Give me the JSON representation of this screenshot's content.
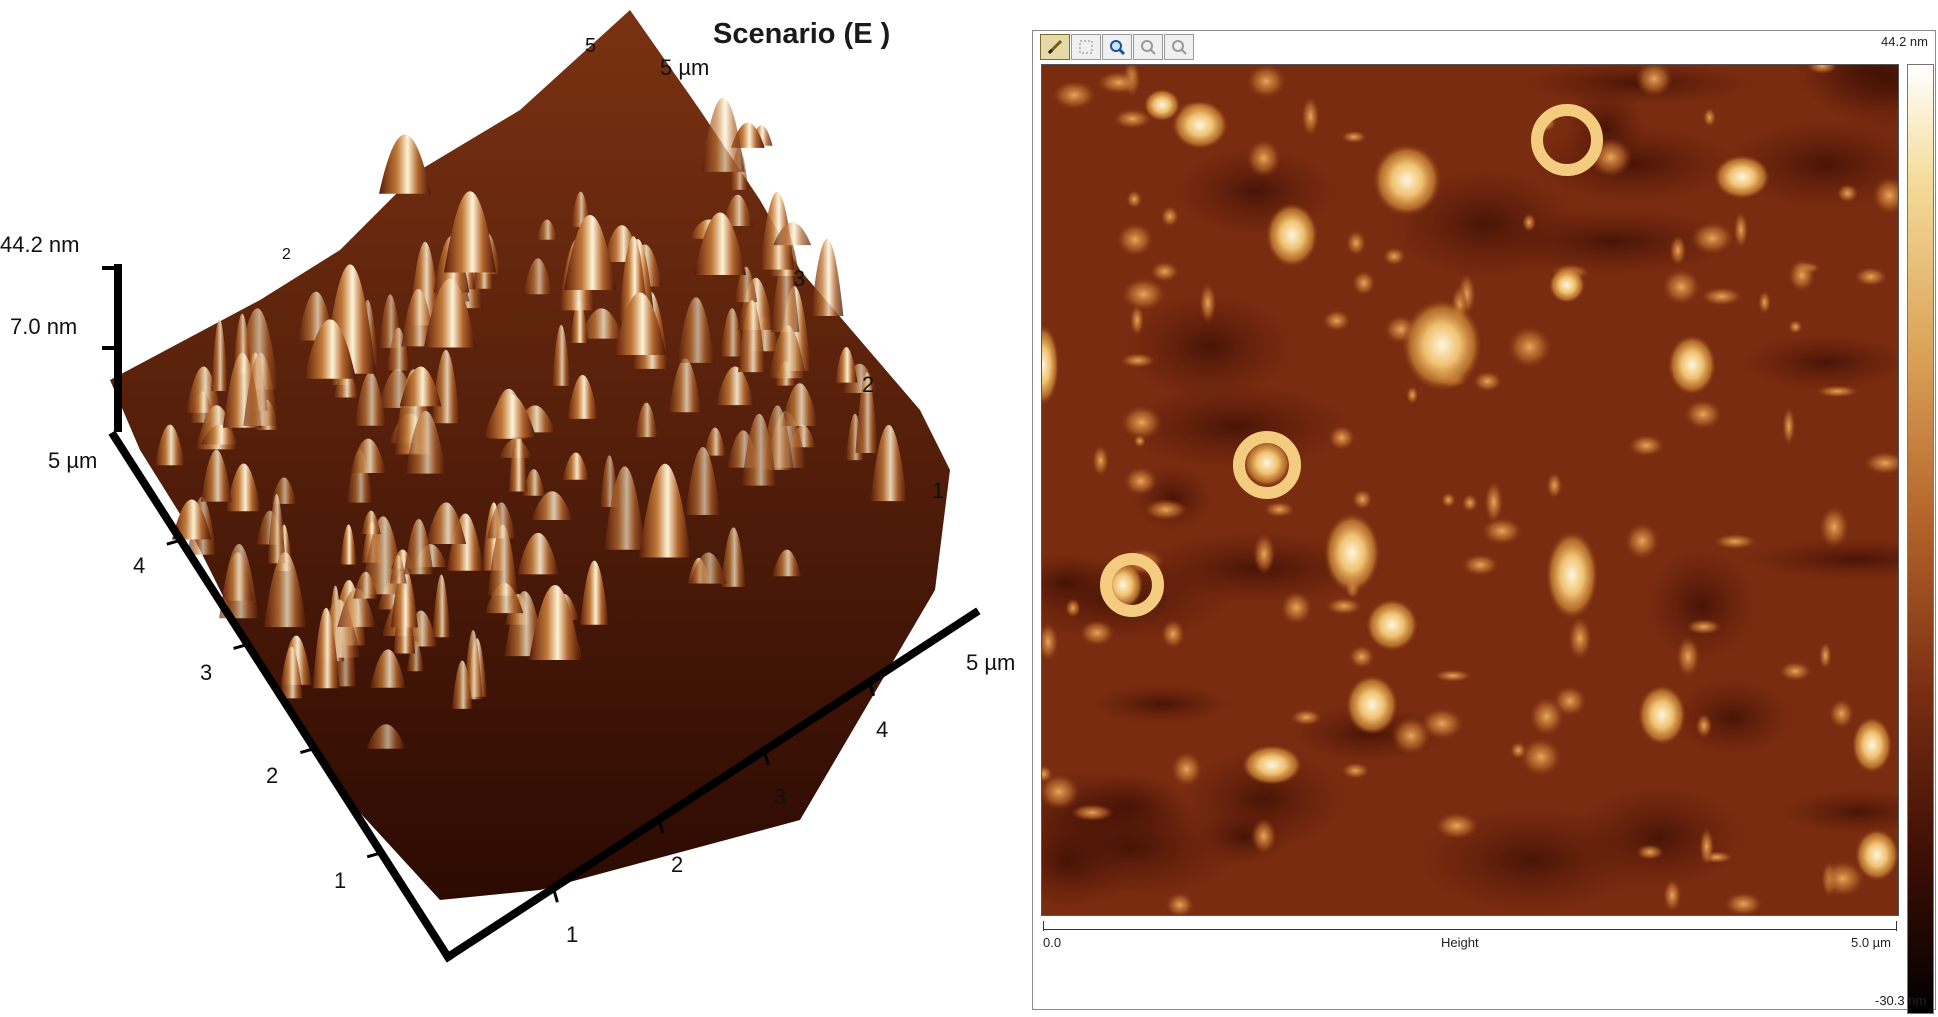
{
  "figure_3d": {
    "title": "Scenario (E )",
    "z_max_label": "44.2 nm",
    "z_mid_label": "7.0 nm",
    "y_axis_end_label": "5 µm",
    "x_axis_end_label": "5 µm",
    "back_axis_end_label": "5 µm",
    "y_ticks": [
      "4",
      "3",
      "2",
      "1"
    ],
    "x_ticks": [
      "1",
      "2",
      "3",
      "4"
    ],
    "right_edge_ticks": [
      "3",
      "2",
      "1"
    ],
    "left_edge_tick": "2"
  },
  "afm_window": {
    "toolbar": {
      "tools": [
        "pencil-tool",
        "select-tool",
        "zoom-tool",
        "zoom-in-tool",
        "zoom-out-tool"
      ]
    },
    "colorbar": {
      "max_label": "44.2 nm",
      "min_label": "-30.3 nm"
    },
    "scale_bar": {
      "start_label": "0.0",
      "center_label": "Height",
      "end_label": "5.0 µm"
    }
  },
  "colors": {
    "surface_dark": "#3a0c02",
    "surface_mid": "#8a3a14",
    "surface_light": "#e9b86a",
    "surface_peak": "#fff8e6"
  }
}
